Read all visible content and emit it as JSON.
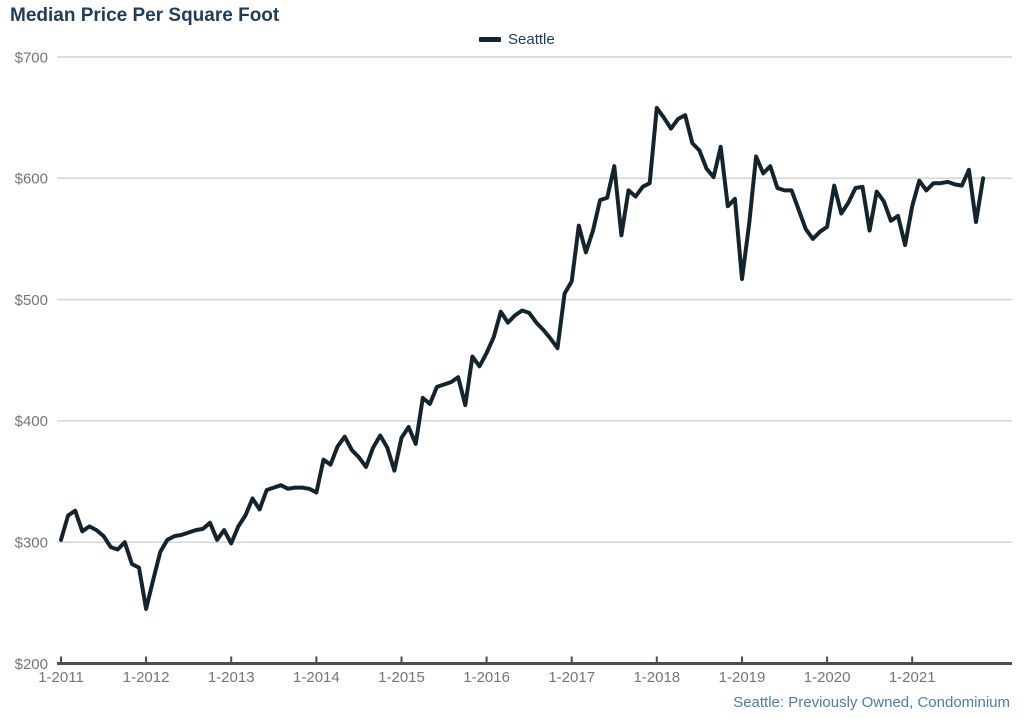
{
  "ui": {
    "title": "Median Price Per Square Foot",
    "legend_label": "Seattle",
    "source_note": "Seattle: Previously Owned, Condominium",
    "colors": {
      "title_text": "#1e3c5e",
      "legend_text": "#1e3c5e",
      "source_text": "#4a7dae",
      "axis_label_text": "#757575",
      "gridline": "#d4d4d4",
      "axis_line": "#4d4d4d",
      "series_line": "#14242e",
      "background": "#ffffff"
    }
  },
  "chart_data": {
    "type": "line",
    "title": "Median Price Per Square Foot",
    "xlabel": "",
    "ylabel": "",
    "x_frequency": "monthly",
    "x_start": "Jan 2011",
    "x_end": "Nov 2021",
    "categories": [
      "1-2011",
      "1-2012",
      "1-2013",
      "1-2014",
      "1-2015",
      "1-2016",
      "1-2017",
      "1-2018",
      "1-2019",
      "1-2020",
      "1-2021"
    ],
    "y_ticks": [
      700,
      600,
      500,
      400,
      300,
      200
    ],
    "y_tick_labels": [
      "$700",
      "$600",
      "$500",
      "$400",
      "$300",
      "$200"
    ],
    "ylim": [
      200,
      700
    ],
    "grid": "horizontal",
    "legend_position": "top-center",
    "series": [
      {
        "name": "Seattle",
        "color": "#14242e",
        "values": [
          302,
          322,
          326,
          309,
          313,
          310,
          305,
          296,
          294,
          300,
          282,
          279,
          245,
          269,
          292,
          302,
          305,
          306,
          308,
          310,
          311,
          316,
          302,
          310,
          299,
          313,
          322,
          336,
          327,
          343,
          345,
          347,
          344,
          345,
          345,
          344,
          341,
          368,
          364,
          379,
          387,
          376,
          370,
          362,
          378,
          388,
          378,
          359,
          386,
          395,
          381,
          419,
          414,
          428,
          430,
          432,
          436,
          413,
          453,
          445,
          456,
          469,
          490,
          481,
          487,
          491,
          489,
          481,
          475,
          468,
          460,
          505,
          515,
          561,
          539,
          557,
          582,
          584,
          610,
          553,
          590,
          585,
          593,
          596,
          658,
          650,
          641,
          649,
          652,
          629,
          623,
          608,
          601,
          626,
          577,
          583,
          517,
          562,
          618,
          604,
          610,
          592,
          590,
          590,
          574,
          558,
          550,
          556,
          560,
          594,
          571,
          580,
          592,
          593,
          557,
          589,
          581,
          565,
          569,
          545,
          577,
          598,
          590,
          596,
          596,
          597,
          595,
          594,
          607,
          564,
          600
        ]
      }
    ]
  }
}
